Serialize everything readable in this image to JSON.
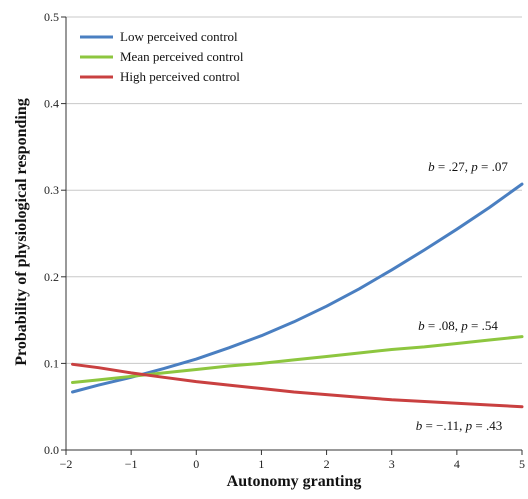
{
  "chart_data": {
    "type": "line",
    "xlabel": "Autonomy granting",
    "ylabel": "Probability of physiological  responding",
    "xlim": [
      -2,
      5
    ],
    "ylim": [
      0,
      0.5
    ],
    "x_ticks": [
      "−2",
      "−1",
      "0",
      "1",
      "2",
      "3",
      "4",
      "5"
    ],
    "y_ticks": [
      "0.0",
      "0.1",
      "0.2",
      "0.3",
      "0.4",
      "0.5"
    ],
    "grid": "horizontal",
    "legend_position": "top-left",
    "x": [
      -1.9,
      -1.5,
      -1,
      -0.5,
      0,
      0.5,
      1,
      1.5,
      2,
      2.5,
      3,
      3.5,
      4,
      4.5,
      5
    ],
    "series": [
      {
        "name": "Low perceived control",
        "color": "#4a7fc1",
        "values": [
          0.067,
          0.075,
          0.084,
          0.094,
          0.105,
          0.118,
          0.132,
          0.148,
          0.166,
          0.186,
          0.208,
          0.231,
          0.255,
          0.28,
          0.307
        ],
        "annotation": {
          "b": ".27",
          "p": ".07",
          "text": "b = .27, p = .07"
        }
      },
      {
        "name": "Mean perceived control",
        "color": "#8dc63f",
        "values": [
          0.078,
          0.081,
          0.085,
          0.089,
          0.093,
          0.097,
          0.1,
          0.104,
          0.108,
          0.112,
          0.116,
          0.119,
          0.123,
          0.127,
          0.131
        ],
        "annotation": {
          "b": ".08",
          "p": ".54",
          "text": "b = .08, p = .54"
        }
      },
      {
        "name": "High perceived control",
        "color": "#c94040",
        "values": [
          0.099,
          0.095,
          0.089,
          0.084,
          0.079,
          0.075,
          0.071,
          0.067,
          0.064,
          0.061,
          0.058,
          0.056,
          0.054,
          0.052,
          0.05
        ],
        "annotation": {
          "b": "−.11",
          "p": ".43",
          "text": "b = −.11, p = .43"
        }
      }
    ]
  }
}
